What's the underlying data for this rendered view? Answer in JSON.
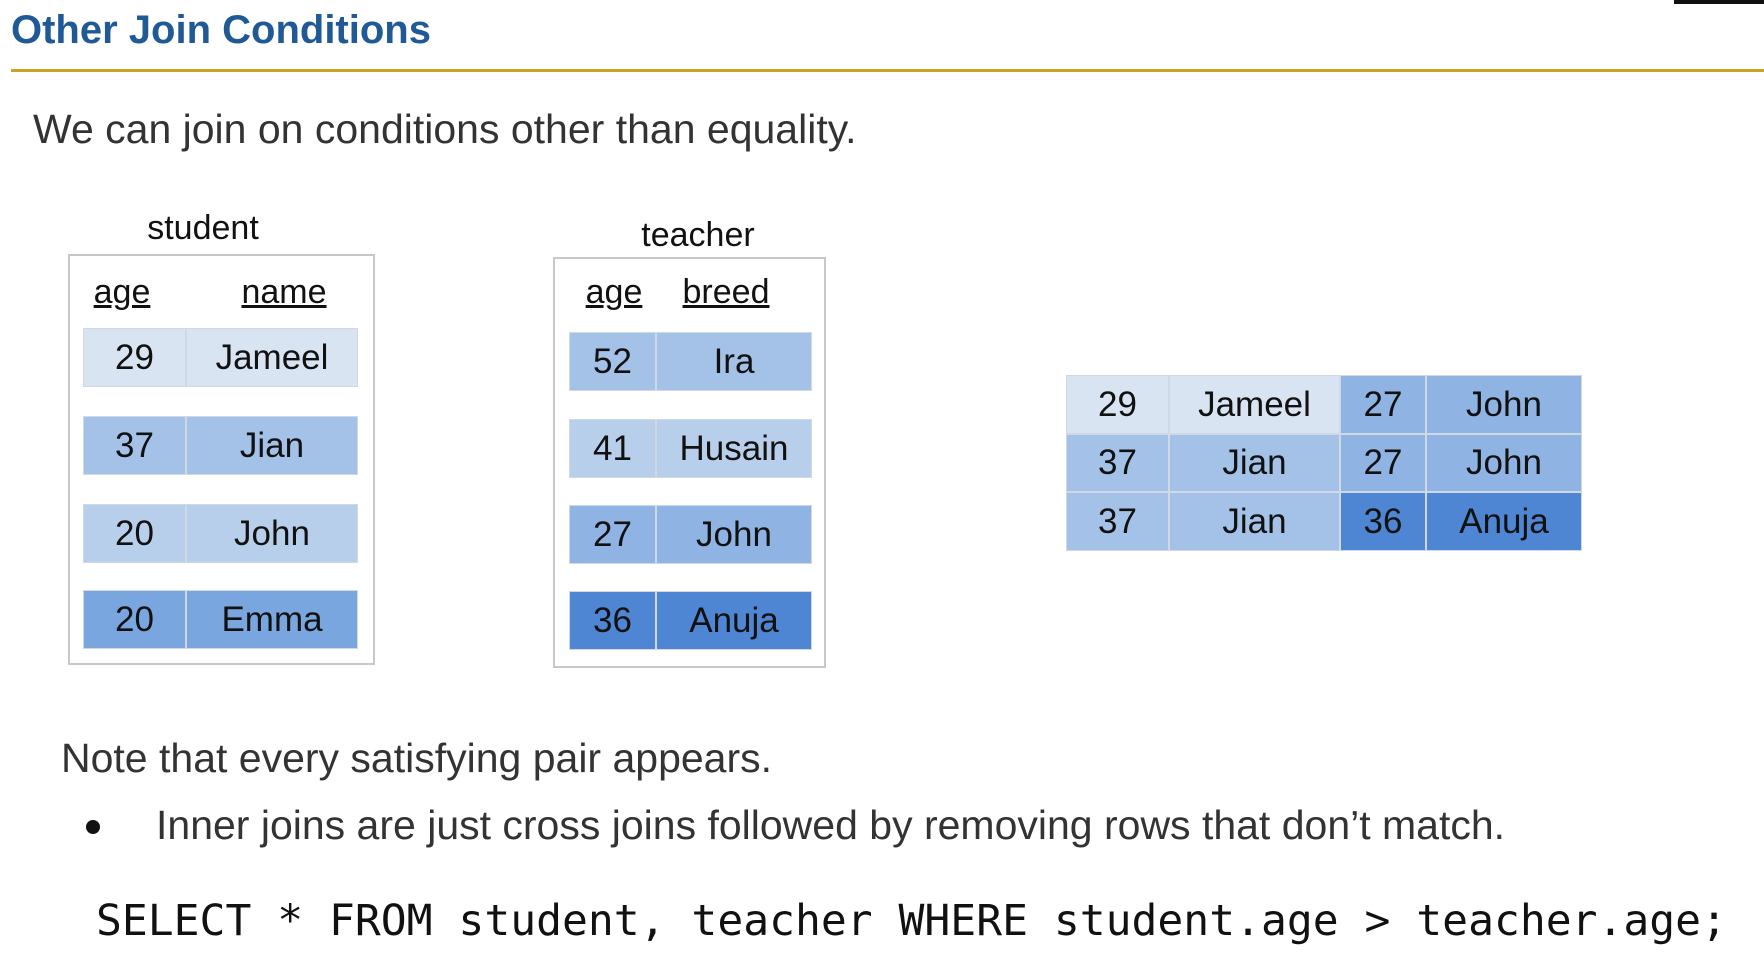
{
  "title": "Other Join Conditions",
  "intro": "We can join on conditions other than equality.",
  "student": {
    "caption": "student",
    "headers": [
      "age",
      "name"
    ],
    "rows": [
      [
        "29",
        "Jameel"
      ],
      [
        "37",
        "Jian"
      ],
      [
        "20",
        "John"
      ],
      [
        "20",
        "Emma"
      ]
    ]
  },
  "teacher": {
    "caption": "teacher",
    "headers": [
      "age",
      "breed"
    ],
    "rows": [
      [
        "52",
        "Ira"
      ],
      [
        "41",
        "Husain"
      ],
      [
        "27",
        "John"
      ],
      [
        "36",
        "Anuja"
      ]
    ]
  },
  "result": {
    "rows": [
      [
        "29",
        "Jameel",
        "27",
        "John"
      ],
      [
        "37",
        "Jian",
        "27",
        "John"
      ],
      [
        "37",
        "Jian",
        "36",
        "Anuja"
      ]
    ]
  },
  "note": "Note that every satisfying pair appears.",
  "bullet": "Inner joins are just cross joins followed by removing rows that don’t match.",
  "sql": "SELECT * FROM student, teacher WHERE student.age > teacher.age;",
  "colors": {
    "title": "#1f5a96",
    "rule": "#c9a227",
    "shade_lightest": "#d9e4f2",
    "shade_light": "#b8cfeb",
    "shade_mid": "#a4c2e8",
    "shade_dark": "#5b8fd6"
  }
}
